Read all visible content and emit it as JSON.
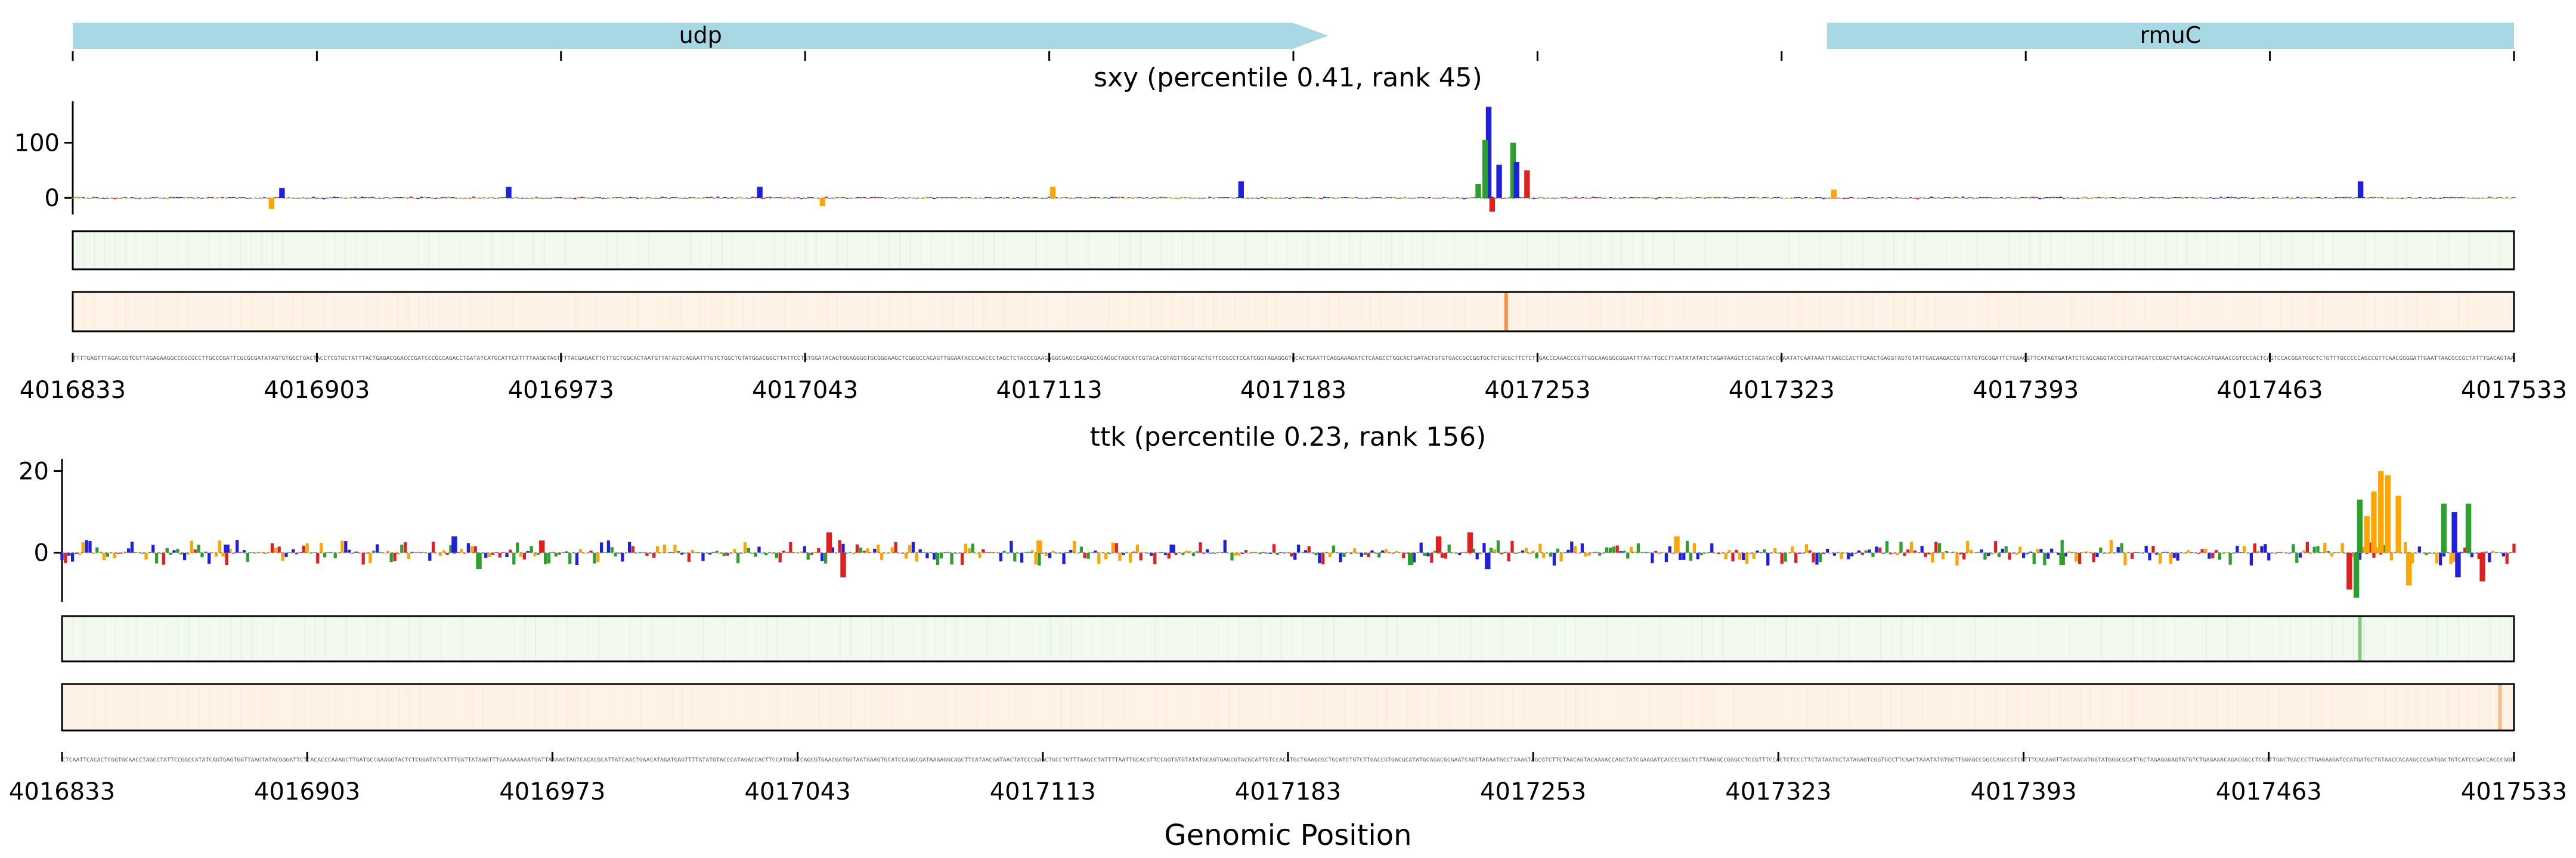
{
  "chart_data": {
    "type": "genome-track",
    "xlabel": "Genomic Position",
    "xlim": [
      4016833,
      4017533
    ],
    "x_ticks": [
      4016833,
      4016903,
      4016973,
      4017043,
      4017113,
      4017183,
      4017253,
      4017323,
      4017393,
      4017463,
      4017533
    ],
    "x_tick_labels": [
      "4016833",
      "4016903",
      "4016973",
      "4017043",
      "4017113",
      "4017183",
      "4017253",
      "4017323",
      "4017393",
      "4017463",
      "4017533"
    ],
    "genes": [
      {
        "name": "udp",
        "start": 4016833,
        "end": 4017193,
        "strand": "+"
      },
      {
        "name": "rmuC",
        "start": 4017336,
        "end": 4017533,
        "strand": "+"
      }
    ],
    "base_colors": {
      "A": "#2ca02c",
      "C": "#1f1fe0",
      "G": "#ffa500",
      "T": "#e02020"
    },
    "panels": [
      {
        "title": "sxy (percentile 0.41, rank 45)",
        "y_ticks": [
          0,
          100
        ],
        "y_tick_labels": [
          "0",
          "100"
        ],
        "ylim": [
          -30,
          175
        ],
        "peaks": [
          {
            "x": 4017239,
            "height": 165,
            "base": "C"
          },
          {
            "x": 4017238,
            "height": 105,
            "base": "A"
          },
          {
            "x": 4017242,
            "height": 60,
            "base": "C"
          },
          {
            "x": 4017246,
            "height": 100,
            "base": "A"
          },
          {
            "x": 4017247,
            "height": 65,
            "base": "C"
          },
          {
            "x": 4017250,
            "height": 50,
            "base": "T"
          },
          {
            "x": 4017236,
            "height": 25,
            "base": "A"
          },
          {
            "x": 4017240,
            "height": -25,
            "base": "T"
          },
          {
            "x": 4017168,
            "height": 30,
            "base": "C"
          },
          {
            "x": 4017489,
            "height": 30,
            "base": "C"
          },
          {
            "x": 4016893,
            "height": 18,
            "base": "C"
          },
          {
            "x": 4016890,
            "height": -20,
            "base": "G"
          },
          {
            "x": 4016958,
            "height": 20,
            "base": "C"
          },
          {
            "x": 4017030,
            "height": 20,
            "base": "C"
          },
          {
            "x": 4017114,
            "height": 20,
            "base": "G"
          },
          {
            "x": 4017048,
            "height": -15,
            "base": "G"
          },
          {
            "x": 4017338,
            "height": 15,
            "base": "G"
          }
        ],
        "heatmap1": {
          "color": "#2ca02c",
          "peaks": []
        },
        "heatmap2": {
          "color": "#f4802a",
          "peaks": [
            {
              "x": 4017244,
              "value": 0.85
            }
          ]
        }
      },
      {
        "title": "ttk (percentile 0.23, rank 156)",
        "y_ticks": [
          0,
          20
        ],
        "y_tick_labels": [
          "0",
          "20"
        ],
        "ylim": [
          -12,
          23
        ],
        "peaks": [
          {
            "x": 4017495,
            "height": 20,
            "base": "G"
          },
          {
            "x": 4017497,
            "height": 19,
            "base": "G"
          },
          {
            "x": 4017493,
            "height": 15,
            "base": "G"
          },
          {
            "x": 4017500,
            "height": 14,
            "base": "G"
          },
          {
            "x": 4017503,
            "height": -8,
            "base": "G"
          },
          {
            "x": 4017489,
            "height": 13,
            "base": "A"
          },
          {
            "x": 4017486,
            "height": -9,
            "base": "T"
          },
          {
            "x": 4017488,
            "height": -11,
            "base": "A"
          },
          {
            "x": 4017491,
            "height": 9,
            "base": "G"
          },
          {
            "x": 4017513,
            "height": 12,
            "base": "A"
          },
          {
            "x": 4017520,
            "height": 12,
            "base": "A"
          },
          {
            "x": 4017516,
            "height": 10,
            "base": "C"
          },
          {
            "x": 4017524,
            "height": -7,
            "base": "T"
          },
          {
            "x": 4017517,
            "height": -6,
            "base": "C"
          },
          {
            "x": 4016945,
            "height": 4,
            "base": "C"
          },
          {
            "x": 4016952,
            "height": -4,
            "base": "A"
          },
          {
            "x": 4017052,
            "height": 5,
            "base": "T"
          },
          {
            "x": 4017056,
            "height": -6,
            "base": "T"
          },
          {
            "x": 4017235,
            "height": 5,
            "base": "T"
          },
          {
            "x": 4017240,
            "height": -4,
            "base": "C"
          },
          {
            "x": 4017218,
            "height": -3,
            "base": "A"
          },
          {
            "x": 4017226,
            "height": 4,
            "base": "T"
          },
          {
            "x": 4017294,
            "height": 4,
            "base": "G"
          },
          {
            "x": 4017404,
            "height": -3,
            "base": "A"
          },
          {
            "x": 4016880,
            "height": 2,
            "base": "C"
          },
          {
            "x": 4016970,
            "height": 3,
            "base": "T"
          },
          {
            "x": 4017112,
            "height": 3,
            "base": "G"
          },
          {
            "x": 4017150,
            "height": 2,
            "base": "C"
          }
        ],
        "heatmap1": {
          "color": "#2ca02c",
          "peaks": [
            {
              "x": 4017489,
              "value": 0.55
            }
          ]
        },
        "heatmap2": {
          "color": "#f4802a",
          "peaks": [
            {
              "x": 4017529,
              "value": 0.5
            }
          ]
        }
      }
    ]
  }
}
